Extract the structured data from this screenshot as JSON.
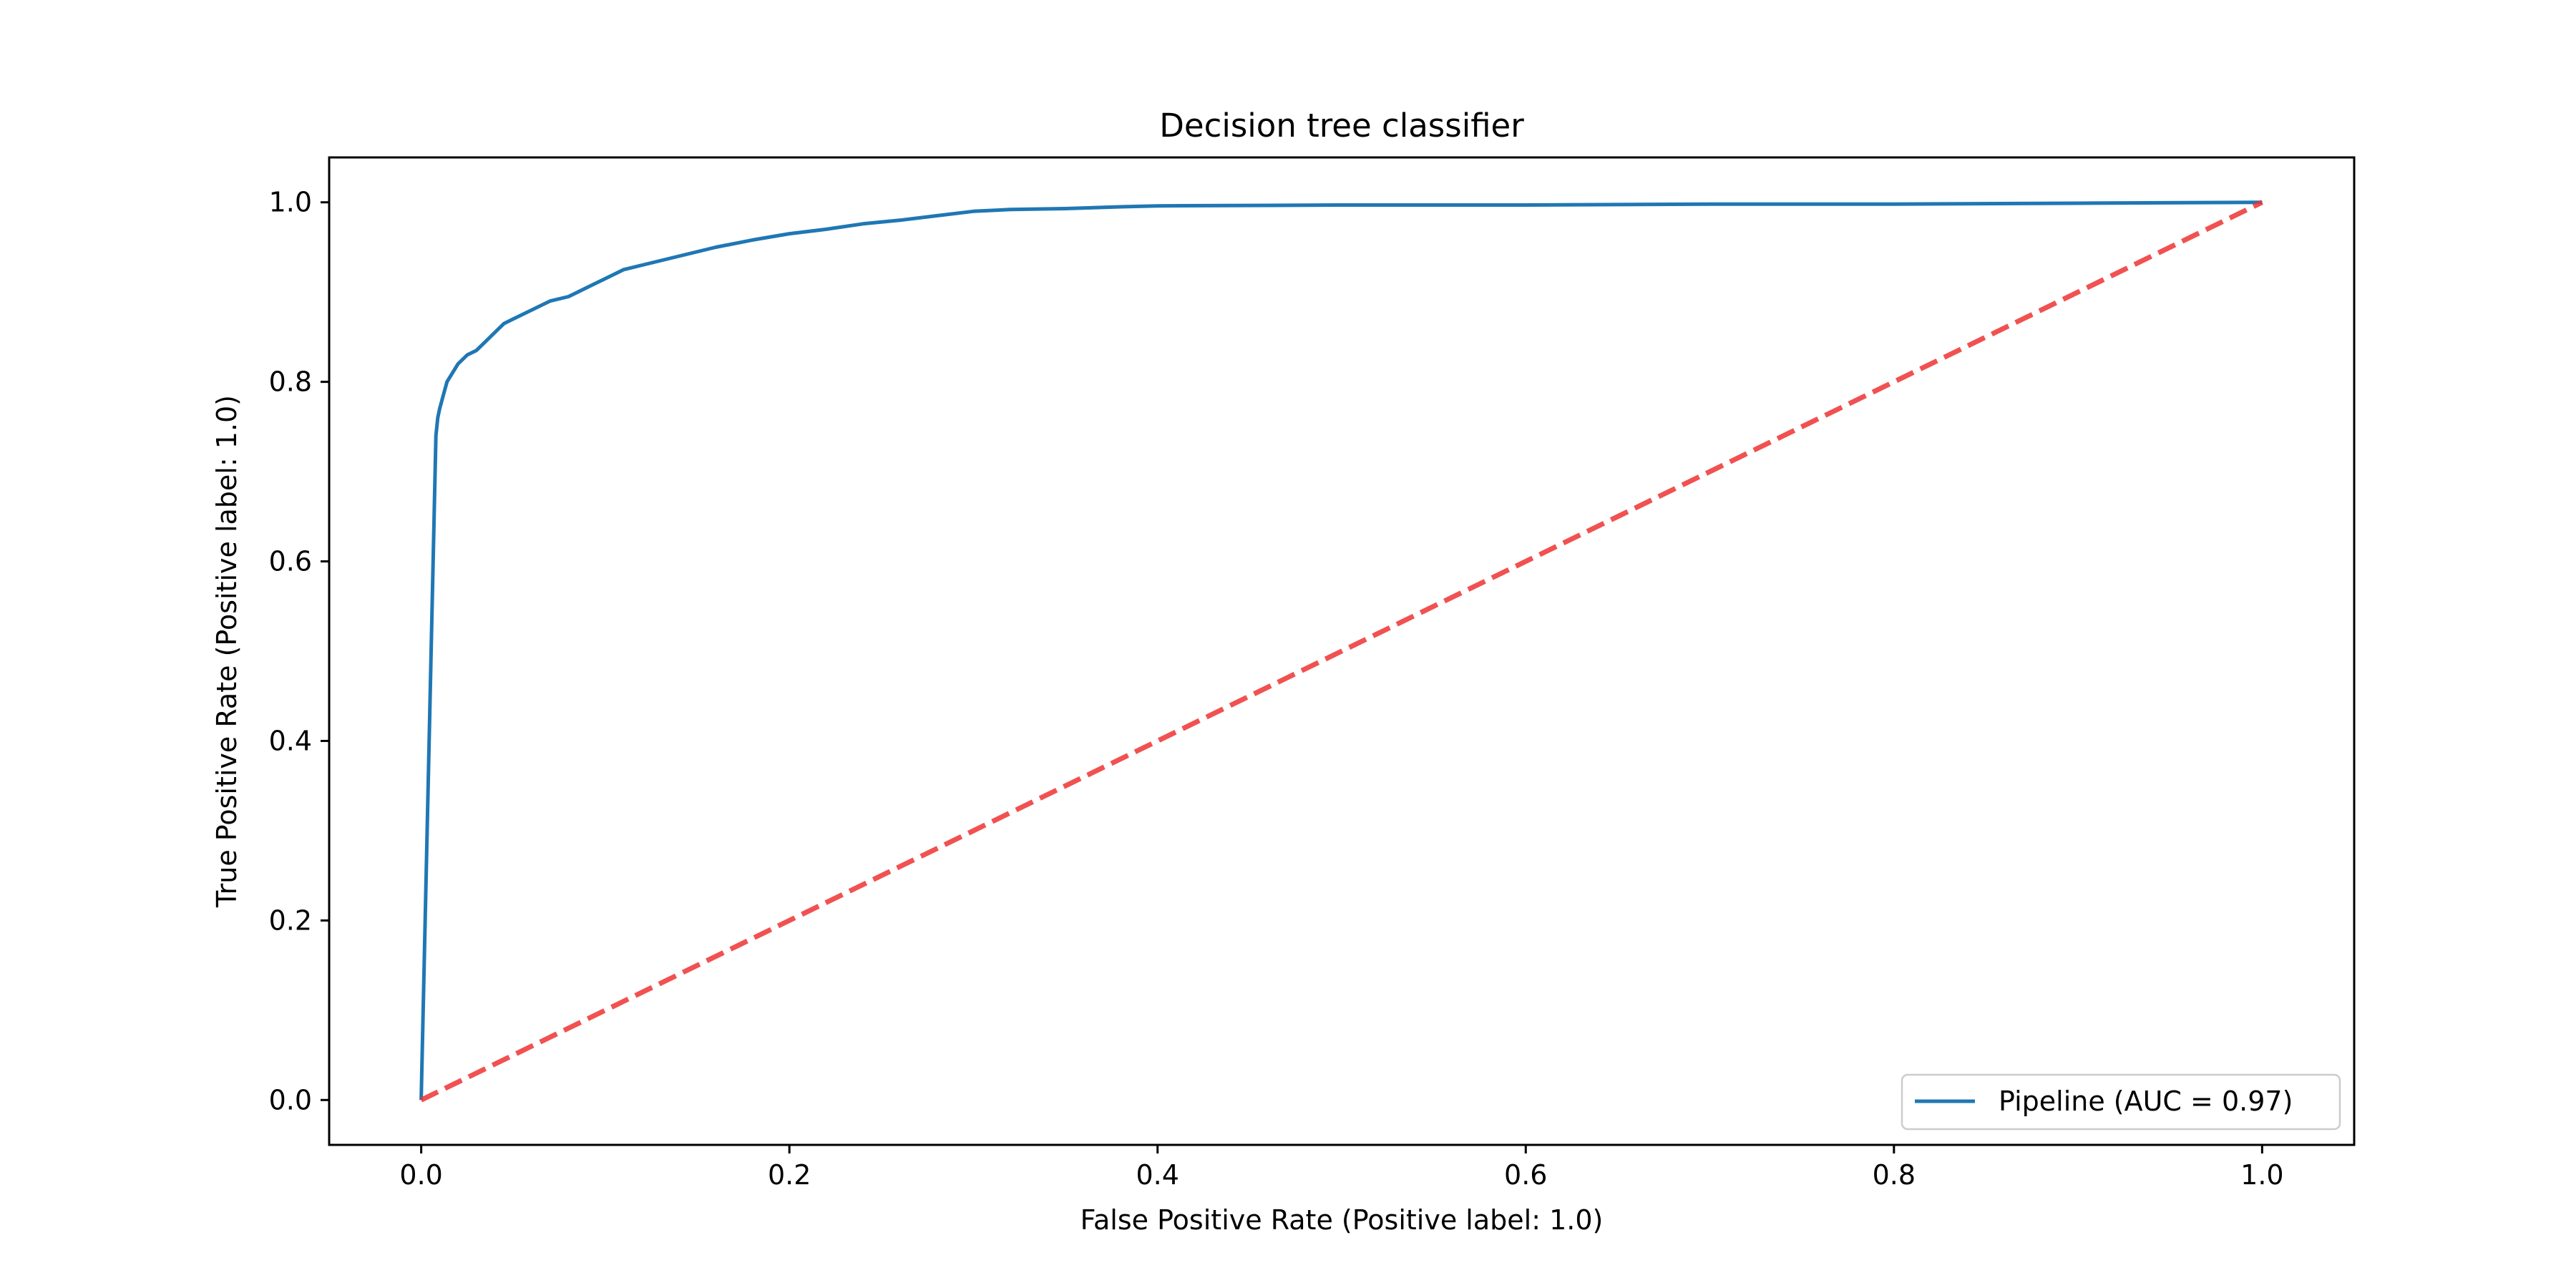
{
  "chart_data": {
    "type": "line",
    "title": "Decision tree classifier",
    "xlabel": "False Positive Rate (Positive label: 1.0)",
    "ylabel": "True Positive Rate (Positive label: 1.0)",
    "xlim": [
      -0.05,
      1.05
    ],
    "ylim": [
      -0.05,
      1.05
    ],
    "xticks": [
      0.0,
      0.2,
      0.4,
      0.6,
      0.8,
      1.0
    ],
    "yticks": [
      0.0,
      0.2,
      0.4,
      0.6,
      0.8,
      1.0
    ],
    "xtick_labels": [
      "0.0",
      "0.2",
      "0.4",
      "0.6",
      "0.8",
      "1.0"
    ],
    "ytick_labels": [
      "0.0",
      "0.2",
      "0.4",
      "0.6",
      "0.8",
      "1.0"
    ],
    "grid": false,
    "legend_position": "bottom-right",
    "series": [
      {
        "name": "Pipeline (AUC = 0.97)",
        "color": "#1f77b4",
        "style": "solid",
        "x": [
          0.0,
          0.008,
          0.009,
          0.01,
          0.012,
          0.014,
          0.017,
          0.02,
          0.025,
          0.03,
          0.035,
          0.04,
          0.045,
          0.05,
          0.06,
          0.07,
          0.08,
          0.085,
          0.09,
          0.1,
          0.11,
          0.12,
          0.14,
          0.16,
          0.18,
          0.2,
          0.22,
          0.24,
          0.26,
          0.28,
          0.3,
          0.32,
          0.35,
          0.38,
          0.4,
          0.5,
          0.6,
          0.7,
          0.8,
          0.9,
          1.0
        ],
        "y": [
          0.0,
          0.74,
          0.76,
          0.77,
          0.785,
          0.8,
          0.81,
          0.82,
          0.83,
          0.835,
          0.845,
          0.855,
          0.865,
          0.87,
          0.88,
          0.89,
          0.895,
          0.9,
          0.905,
          0.915,
          0.925,
          0.93,
          0.94,
          0.95,
          0.958,
          0.965,
          0.97,
          0.976,
          0.98,
          0.985,
          0.99,
          0.992,
          0.993,
          0.995,
          0.996,
          0.997,
          0.997,
          0.998,
          0.998,
          0.999,
          1.0
        ]
      },
      {
        "name": "",
        "color": "#ee3333",
        "style": "dashed",
        "x": [
          0.0,
          1.0
        ],
        "y": [
          0.0,
          1.0
        ]
      }
    ],
    "legend": {
      "label": "Pipeline (AUC = 0.97)"
    }
  }
}
